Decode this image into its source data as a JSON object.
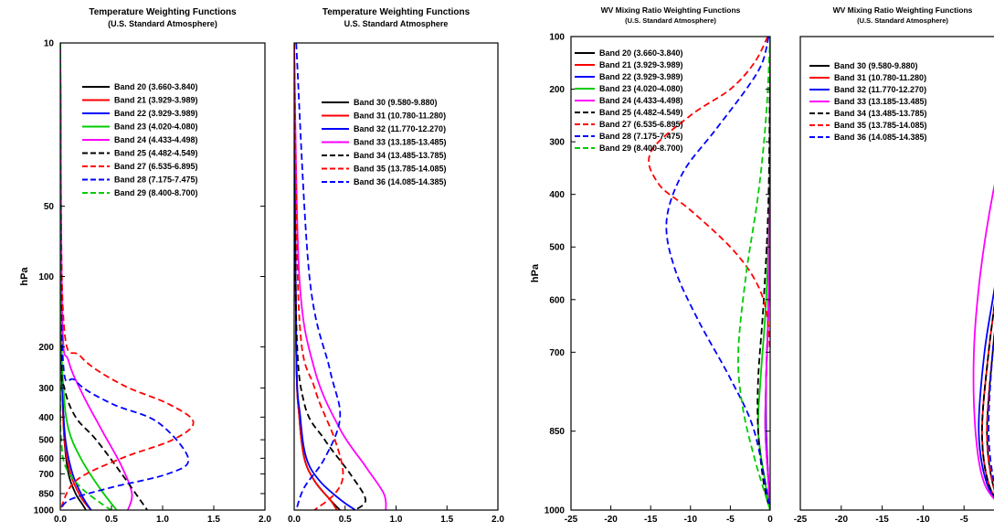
{
  "chart_data": [
    {
      "id": "temp_a",
      "type": "line",
      "title": "Temperature Weighting Functions",
      "subtitle": "(U.S. Standard Atmosphere)",
      "ylabel": "hPa",
      "y_scale": "log",
      "y_reversed": true,
      "xlim": [
        0,
        2
      ],
      "ylim": [
        10,
        1000
      ],
      "x_ticks": [
        "0.0",
        "0.5",
        "1.0",
        "1.5",
        "2.0"
      ],
      "y_ticks": [
        "10",
        "50",
        "100",
        "200",
        "300",
        "400",
        "500",
        "600",
        "700",
        "850",
        "1000"
      ],
      "legend_position": "top-right",
      "series": [
        {
          "name": "Band 20 (3.660-3.840)",
          "color": "#000000",
          "dash": "solid",
          "x": [
            0.0,
            0.01,
            0.02,
            0.04,
            0.08,
            0.15,
            0.22,
            0.25
          ],
          "y": [
            10,
            150,
            300,
            500,
            700,
            850,
            950,
            1000
          ]
        },
        {
          "name": "Band 21 (3.929-3.989)",
          "color": "#ff0000",
          "dash": "solid",
          "x": [
            0.0,
            0.01,
            0.02,
            0.04,
            0.1,
            0.2,
            0.3
          ],
          "y": [
            10,
            150,
            300,
            500,
            700,
            880,
            1000
          ]
        },
        {
          "name": "Band 22 (3.929-3.989)",
          "color": "#0000ff",
          "dash": "solid",
          "x": [
            0.0,
            0.01,
            0.02,
            0.05,
            0.12,
            0.22,
            0.3
          ],
          "y": [
            10,
            150,
            300,
            500,
            700,
            880,
            1000
          ]
        },
        {
          "name": "Band 23 (4.020-4.080)",
          "color": "#00cc00",
          "dash": "solid",
          "x": [
            0.0,
            0.01,
            0.03,
            0.08,
            0.2,
            0.38,
            0.55
          ],
          "y": [
            10,
            150,
            300,
            450,
            600,
            800,
            1000
          ]
        },
        {
          "name": "Band 24 (4.433-4.498)",
          "color": "#ff00ff",
          "dash": "solid",
          "x": [
            0.0,
            0.02,
            0.08,
            0.22,
            0.4,
            0.6,
            0.7,
            0.66
          ],
          "y": [
            10,
            150,
            230,
            320,
            450,
            650,
            850,
            1000
          ]
        },
        {
          "name": "Band 25 (4.482-4.549)",
          "color": "#000000",
          "dash": "dash",
          "x": [
            0.0,
            0.01,
            0.04,
            0.15,
            0.35,
            0.6,
            0.85
          ],
          "y": [
            10,
            200,
            300,
            400,
            500,
            700,
            1000
          ]
        },
        {
          "name": "Band 27 (6.535-6.895)",
          "color": "#ff0000",
          "dash": "dash",
          "x": [
            0.0,
            0.03,
            0.2,
            0.6,
            1.05,
            1.3,
            1.1,
            0.6,
            0.15,
            0.0
          ],
          "y": [
            10,
            150,
            220,
            290,
            350,
            420,
            500,
            600,
            750,
            1000
          ]
        },
        {
          "name": "Band 28 (7.175-7.475)",
          "color": "#0000ff",
          "dash": "dash",
          "x": [
            0.0,
            0.02,
            0.15,
            0.5,
            0.95,
            1.25,
            1.05,
            0.5,
            0.1,
            0.0
          ],
          "y": [
            10,
            200,
            280,
            350,
            420,
            600,
            700,
            800,
            900,
            1000
          ]
        },
        {
          "name": "Band 29 (8.400-8.700)",
          "color": "#00cc00",
          "dash": "dash",
          "x": [
            0.0,
            0.0,
            0.01,
            0.05,
            0.2,
            0.42,
            0.5
          ],
          "y": [
            10,
            300,
            500,
            650,
            800,
            950,
            1000
          ]
        }
      ]
    },
    {
      "id": "temp_b",
      "type": "line",
      "title": "Temperature Weighting Functions",
      "subtitle": "U.S. Standard Atmosphere",
      "y_scale": "log",
      "y_reversed": true,
      "xlim": [
        0,
        2
      ],
      "ylim": [
        10,
        1000
      ],
      "x_ticks": [
        "0.0",
        "0.5",
        "1.0",
        "1.5",
        "2.0"
      ],
      "legend_position": "top-right",
      "series": [
        {
          "name": "Band 30 (9.580-9.880)",
          "color": "#000000",
          "dash": "solid",
          "x": [
            0.0,
            0.02,
            0.05,
            0.1,
            0.2,
            0.35,
            0.45
          ],
          "y": [
            10,
            200,
            400,
            600,
            750,
            900,
            1000
          ]
        },
        {
          "name": "Band 31 (10.780-11.280)",
          "color": "#ff0000",
          "dash": "solid",
          "x": [
            0.0,
            0.02,
            0.05,
            0.1,
            0.2,
            0.35,
            0.42
          ],
          "y": [
            10,
            200,
            400,
            600,
            750,
            900,
            1000
          ]
        },
        {
          "name": "Band 32 (11.770-12.270)",
          "color": "#0000ff",
          "dash": "solid",
          "x": [
            0.0,
            0.02,
            0.06,
            0.12,
            0.25,
            0.45,
            0.6
          ],
          "y": [
            10,
            200,
            400,
            600,
            750,
            900,
            1000
          ]
        },
        {
          "name": "Band 33 (13.185-13.485)",
          "color": "#ff00ff",
          "dash": "solid",
          "x": [
            0.0,
            0.05,
            0.2,
            0.45,
            0.7,
            0.88,
            0.9
          ],
          "y": [
            10,
            100,
            250,
            450,
            650,
            850,
            1000
          ]
        },
        {
          "name": "Band 34 (13.485-13.785)",
          "color": "#000000",
          "dash": "dash",
          "x": [
            0.0,
            0.02,
            0.1,
            0.3,
            0.55,
            0.7,
            0.6
          ],
          "y": [
            10,
            150,
            350,
            500,
            700,
            900,
            1000
          ]
        },
        {
          "name": "Band 35 (13.785-14.085)",
          "color": "#ff0000",
          "dash": "dash",
          "x": [
            0.0,
            0.05,
            0.2,
            0.4,
            0.48,
            0.4,
            0.2
          ],
          "y": [
            10,
            150,
            300,
            500,
            700,
            850,
            1000
          ]
        },
        {
          "name": "Band 36 (14.085-14.385)",
          "color": "#0000ff",
          "dash": "dash",
          "x": [
            0.02,
            0.15,
            0.35,
            0.45,
            0.3,
            0.1,
            0.02
          ],
          "y": [
            10,
            100,
            250,
            400,
            600,
            800,
            1000
          ]
        }
      ]
    },
    {
      "id": "wv_a",
      "type": "line",
      "title": "WV Mixing Ratio Weighting Functions",
      "subtitle": "(U.S. Standard Atmosphere)",
      "ylabel": "hPa",
      "y_scale": "linear",
      "y_reversed": true,
      "xlim": [
        -25,
        0
      ],
      "ylim": [
        100,
        1000
      ],
      "x_ticks": [
        "-25",
        "-20",
        "-15",
        "-10",
        "-5",
        "0"
      ],
      "y_ticks": [
        "100",
        "200",
        "300",
        "400",
        "500",
        "600",
        "700",
        "850",
        "1000"
      ],
      "legend_position": "top-left",
      "series": [
        {
          "name": "Band 20 (3.660-3.840)",
          "color": "#000000",
          "dash": "solid",
          "x": [
            0,
            -0.05,
            -0.2,
            -0.5,
            -0.6,
            -0.2,
            0
          ],
          "y": [
            100,
            400,
            600,
            750,
            850,
            950,
            1000
          ]
        },
        {
          "name": "Band 21 (3.929-3.989)",
          "color": "#ff0000",
          "dash": "solid",
          "x": [
            0,
            -0.05,
            -0.2,
            -0.5,
            -0.5,
            -0.2,
            0
          ],
          "y": [
            100,
            400,
            600,
            750,
            850,
            950,
            1000
          ]
        },
        {
          "name": "Band 22 (3.929-3.989)",
          "color": "#0000ff",
          "dash": "solid",
          "x": [
            0,
            -0.05,
            -0.2,
            -0.5,
            -0.5,
            -0.2,
            0
          ],
          "y": [
            100,
            400,
            600,
            750,
            850,
            950,
            1000
          ]
        },
        {
          "name": "Band 23 (4.020-4.080)",
          "color": "#00cc00",
          "dash": "solid",
          "x": [
            0,
            -0.1,
            -0.5,
            -1.2,
            -1.5,
            -0.6,
            0
          ],
          "y": [
            100,
            400,
            600,
            750,
            850,
            950,
            1000
          ]
        },
        {
          "name": "Band 24 (4.433-4.498)",
          "color": "#ff00ff",
          "dash": "solid",
          "x": [
            0,
            -0.05,
            -0.2,
            -0.5,
            -0.6,
            -0.2,
            0
          ],
          "y": [
            100,
            400,
            600,
            750,
            850,
            950,
            1000
          ]
        },
        {
          "name": "Band 25 (4.482-4.549)",
          "color": "#000000",
          "dash": "dash",
          "x": [
            0,
            -0.2,
            -0.8,
            -1.5,
            -1.5,
            -0.8,
            0
          ],
          "y": [
            100,
            400,
            600,
            750,
            850,
            950,
            1000
          ]
        },
        {
          "name": "Band 27 (6.535-6.895)",
          "color": "#ff0000",
          "dash": "dash",
          "x": [
            -0.3,
            -2,
            -5,
            -10,
            -15,
            -14,
            -10,
            -5,
            -2,
            -0.5,
            0
          ],
          "y": [
            100,
            150,
            200,
            250,
            320,
            380,
            430,
            500,
            560,
            620,
            700
          ]
        },
        {
          "name": "Band 28 (7.175-7.475)",
          "color": "#0000ff",
          "dash": "dash",
          "x": [
            -0.2,
            -1,
            -3,
            -7,
            -11,
            -13,
            -12,
            -9,
            -5,
            -2,
            0
          ],
          "y": [
            100,
            150,
            200,
            280,
            360,
            450,
            540,
            640,
            750,
            850,
            1000
          ]
        },
        {
          "name": "Band 29 (8.400-8.700)",
          "color": "#00cc00",
          "dash": "dash",
          "x": [
            0,
            -0.5,
            -1.5,
            -3,
            -4,
            -3.5,
            -2,
            0
          ],
          "y": [
            100,
            250,
            400,
            550,
            700,
            800,
            900,
            1000
          ]
        }
      ]
    },
    {
      "id": "wv_b",
      "type": "line",
      "title": "WV Mixing Ratio Weighting Functions",
      "subtitle": "(U.S. Standard Atmosphere)",
      "y_scale": "linear",
      "y_reversed": true,
      "xlim": [
        -25,
        0
      ],
      "ylim": [
        100,
        1000
      ],
      "x_ticks": [
        "-25",
        "-20",
        "-15",
        "-10",
        "-5"
      ],
      "legend_position": "top-left",
      "series": [
        {
          "name": "Band 30 (9.580-9.880)",
          "color": "#000000",
          "dash": "solid",
          "x": [
            0,
            -0.5,
            -1.5,
            -2.2,
            -1.5,
            0
          ],
          "y": [
            400,
            550,
            700,
            850,
            950,
            1000
          ]
        },
        {
          "name": "Band 31 (10.780-11.280)",
          "color": "#ff0000",
          "dash": "solid",
          "x": [
            0,
            -0.8,
            -2,
            -2.8,
            -2,
            0
          ],
          "y": [
            400,
            550,
            700,
            850,
            950,
            1000
          ]
        },
        {
          "name": "Band 32 (11.770-12.270)",
          "color": "#0000ff",
          "dash": "solid",
          "x": [
            0,
            -1,
            -2.5,
            -3.2,
            -2.2,
            0
          ],
          "y": [
            400,
            550,
            700,
            850,
            950,
            1000
          ]
        },
        {
          "name": "Band 33 (13.185-13.485)",
          "color": "#ff00ff",
          "dash": "solid",
          "x": [
            0,
            -1.5,
            -3,
            -3.8,
            -3.6,
            -2.5,
            0
          ],
          "y": [
            300,
            400,
            550,
            700,
            850,
            950,
            1000
          ]
        },
        {
          "name": "Band 34 (13.485-13.785)",
          "color": "#000000",
          "dash": "dash",
          "x": [
            0,
            -0.8,
            -2,
            -2.8,
            -2,
            0
          ],
          "y": [
            400,
            550,
            700,
            850,
            950,
            1000
          ]
        },
        {
          "name": "Band 35 (13.785-14.085)",
          "color": "#ff0000",
          "dash": "dash",
          "x": [
            0,
            -0.5,
            -1.5,
            -2.2,
            -1.5,
            0
          ],
          "y": [
            400,
            550,
            700,
            850,
            950,
            1000
          ]
        },
        {
          "name": "Band 36 (14.085-14.385)",
          "color": "#0000ff",
          "dash": "dash",
          "x": [
            0,
            -0.5,
            -1.5,
            -2,
            -1.3,
            0
          ],
          "y": [
            400,
            550,
            700,
            850,
            950,
            1000
          ]
        }
      ]
    }
  ]
}
